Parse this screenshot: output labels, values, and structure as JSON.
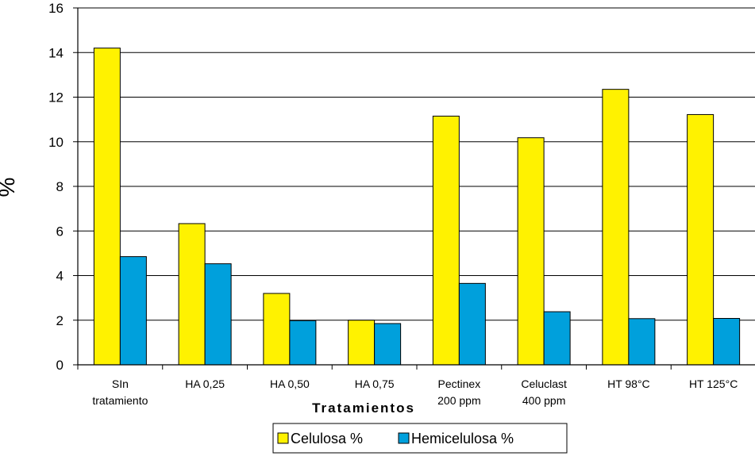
{
  "chart_data": {
    "type": "bar",
    "categories": [
      [
        "SIn",
        "tratamiento"
      ],
      [
        "HA 0,25"
      ],
      [
        "HA 0,50"
      ],
      [
        "HA 0,75"
      ],
      [
        "Pectinex",
        "200 ppm"
      ],
      [
        "Celuclast",
        "400 ppm"
      ],
      [
        "HT 98°C"
      ],
      [
        "HT 125°C"
      ]
    ],
    "series": [
      {
        "name": "Celulosa %",
        "color": "#FFF200",
        "values": [
          14.2,
          6.33,
          3.2,
          2.0,
          11.15,
          10.18,
          12.35,
          11.22
        ]
      },
      {
        "name": "Hemicelulosa %",
        "color": "#00A0DC",
        "values": [
          4.85,
          4.53,
          1.98,
          1.85,
          3.65,
          2.38,
          2.07,
          2.08
        ]
      }
    ],
    "title": "",
    "xlabel": "Tratamientos",
    "ylabel": "%",
    "ylim": [
      0,
      16
    ],
    "yticks": [
      0,
      2,
      4,
      6,
      8,
      10,
      12,
      14,
      16
    ],
    "grid": true,
    "legend_position": "bottom"
  }
}
